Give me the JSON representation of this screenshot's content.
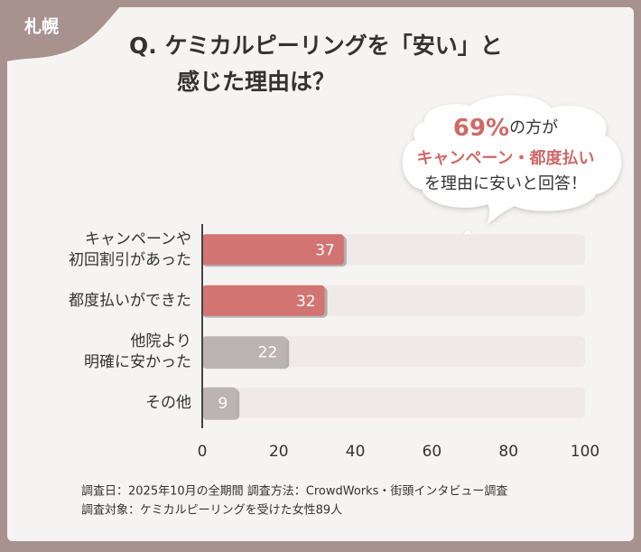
{
  "tag": "札幌",
  "chart_data": {
    "type": "bar",
    "title": [
      "Q. ケミカルピーリングを「安い」と",
      "感じた理由は？"
    ],
    "annotation": [
      [
        "69%",
        "の方が"
      ],
      [
        "キャンペーン・都度払い"
      ],
      [
        "を理由に安いと回答！"
      ]
    ],
    "categories": [
      [
        "キャンペーンや",
        "初回割引があった"
      ],
      [
        "都度払いができた"
      ],
      [
        "他院より",
        "明確に安かった"
      ],
      [
        "その他"
      ]
    ],
    "values": [
      37,
      32,
      22,
      9
    ],
    "colors": [
      "#d27471",
      "#d27471",
      "#bbb4b2",
      "#bbb4b2"
    ],
    "track_color": "#efeae8",
    "xlim": [
      0,
      100
    ],
    "xticks": [
      0,
      20,
      40,
      60,
      80,
      100
    ]
  },
  "notes": [
    "調査日：2025年10月の全期間 調査方法：CrowdWorks・街頭インタビュー調査",
    "調査対象：ケミカルピーリングを受けた女性89人"
  ]
}
